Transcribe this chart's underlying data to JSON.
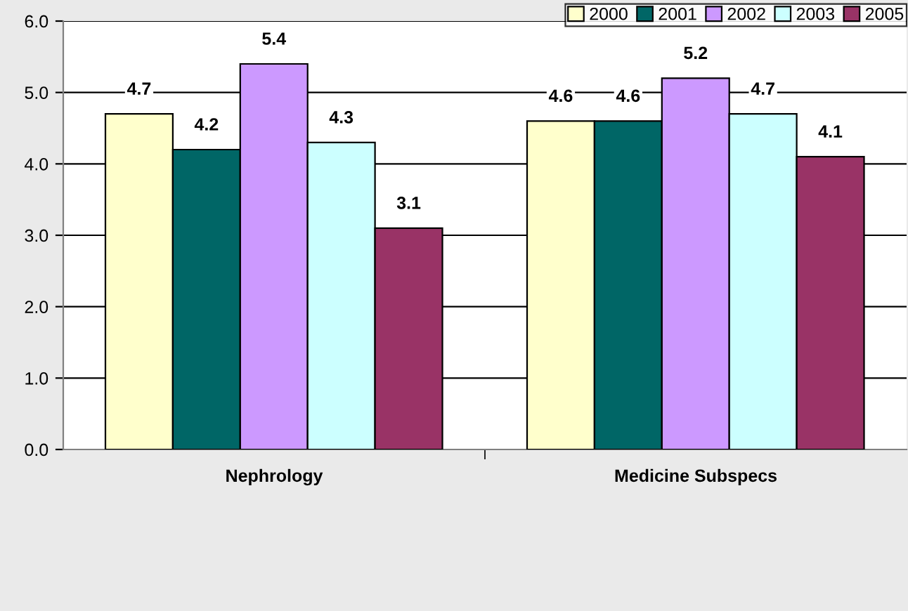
{
  "chart_data": {
    "type": "bar",
    "categories": [
      "Nephrology",
      "Medicine Subspecs"
    ],
    "series": [
      {
        "name": "2000",
        "color": "#ffffcc",
        "values": [
          4.7,
          4.6
        ]
      },
      {
        "name": "2001",
        "color": "#006666",
        "values": [
          4.2,
          4.6
        ]
      },
      {
        "name": "2002",
        "color": "#cc99ff",
        "values": [
          5.4,
          5.2
        ]
      },
      {
        "name": "2003",
        "color": "#ccffff",
        "values": [
          4.3,
          4.7
        ]
      },
      {
        "name": "2005",
        "color": "#993366",
        "values": [
          3.1,
          4.1
        ]
      }
    ],
    "ylim": [
      0,
      6
    ],
    "yticks": [
      {
        "value": 0,
        "label": "0.0"
      },
      {
        "value": 1,
        "label": "1.0"
      },
      {
        "value": 2,
        "label": "2.0"
      },
      {
        "value": 3,
        "label": "3.0"
      },
      {
        "value": 4,
        "label": "4.0"
      },
      {
        "value": 5,
        "label": "5.0"
      },
      {
        "value": 6,
        "label": "6.0"
      }
    ],
    "grid": "y",
    "legend": "top right",
    "data_labels": true
  }
}
